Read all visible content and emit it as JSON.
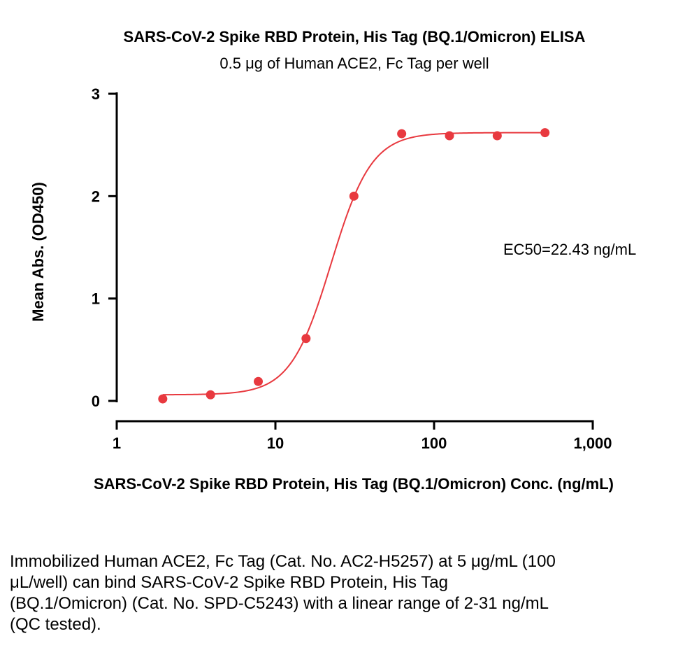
{
  "chart_data": {
    "type": "scatter",
    "title": "SARS-CoV-2 Spike RBD Protein, His Tag (BQ.1/Omicron) ELISA",
    "subtitle": "0.5 μg of Human ACE2, Fc Tag per well",
    "xlabel": "SARS-CoV-2 Spike RBD Protein, His Tag (BQ.1/Omicron) Conc. (ng/mL)",
    "ylabel": "Mean Abs. (OD450)",
    "xscale": "log",
    "xlim": [
      1,
      1000
    ],
    "ylim": [
      0,
      3
    ],
    "xticks": [
      1,
      10,
      100,
      1000
    ],
    "xtick_labels": [
      "1",
      "10",
      "100",
      "1,000"
    ],
    "yticks": [
      0,
      1,
      2,
      3
    ],
    "ytick_labels": [
      "0",
      "1",
      "2",
      "3"
    ],
    "series": [
      {
        "name": "OD450",
        "color": "#e8393f",
        "x": [
          1.95,
          3.9,
          7.8,
          15.6,
          31.25,
          62.5,
          125,
          250,
          500
        ],
        "y": [
          0.02,
          0.06,
          0.19,
          0.61,
          2.0,
          2.61,
          2.59,
          2.59,
          2.62
        ]
      }
    ],
    "fit": {
      "model": "4PL",
      "bottom": 0.06,
      "top": 2.62,
      "ec50": 22.43,
      "hill": 3.4,
      "color": "#e8393f"
    },
    "annotations": [
      {
        "text": "EC50=22.43 ng/mL"
      }
    ],
    "grid": false,
    "legend": "none"
  },
  "caption": "Immobilized Human ACE2, Fc Tag (Cat. No. AC2-H5257) at 5 μg/mL (100 μL/well) can bind SARS-CoV-2 Spike RBD Protein, His Tag (BQ.1/Omicron) (Cat. No. SPD-C5243) with a linear range of 2-31 ng/mL (QC tested)."
}
